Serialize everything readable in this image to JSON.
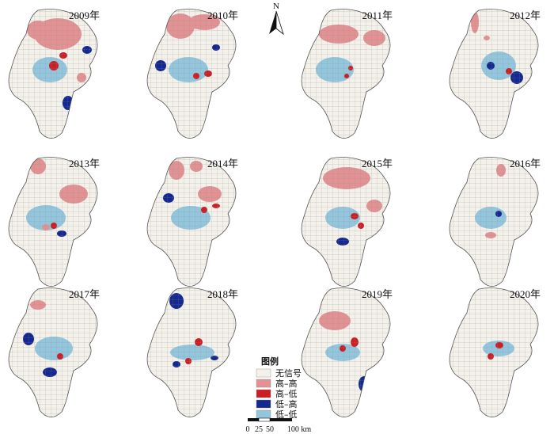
{
  "maps": [
    {
      "year": "2009年"
    },
    {
      "year": "2010年"
    },
    {
      "year": "2011年"
    },
    {
      "year": "2012年"
    },
    {
      "year": "2013年"
    },
    {
      "year": "2014年"
    },
    {
      "year": "2015年"
    },
    {
      "year": "2016年"
    },
    {
      "year": "2017年"
    },
    {
      "year": "2018年"
    },
    {
      "year": "2019年"
    },
    {
      "year": "2020年"
    }
  ],
  "north_arrow": {
    "label": "N"
  },
  "legend": {
    "title": "图例",
    "items": [
      {
        "label": "无信号",
        "color": "#f4f1ea"
      },
      {
        "label": "高–高",
        "color": "#e29293"
      },
      {
        "label": "高–低",
        "color": "#cc1e25"
      },
      {
        "label": "低–高",
        "color": "#14288f"
      },
      {
        "label": "低–低",
        "color": "#93c6dd"
      }
    ]
  },
  "scale_bar": {
    "ticks": [
      "0",
      "25",
      "50",
      "100 km"
    ]
  }
}
